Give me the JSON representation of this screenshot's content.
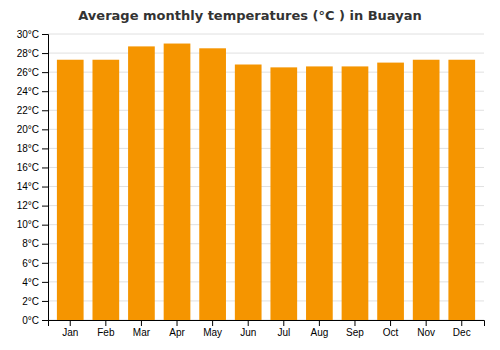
{
  "chart_data": {
    "type": "bar",
    "title": "Average monthly temperatures (°C ) in Buayan",
    "categories": [
      "Jan",
      "Feb",
      "Mar",
      "Apr",
      "May",
      "Jun",
      "Jul",
      "Aug",
      "Sep",
      "Oct",
      "Nov",
      "Dec"
    ],
    "values": [
      27.3,
      27.3,
      28.7,
      29.0,
      28.5,
      26.8,
      26.5,
      26.6,
      26.6,
      27.0,
      27.3,
      27.3
    ],
    "color": "#F59500",
    "ylim": [
      0,
      30
    ],
    "yticks": [
      {
        "value": 0,
        "label": "0°C"
      },
      {
        "value": 2,
        "label": "2°C"
      },
      {
        "value": 4,
        "label": "4°C"
      },
      {
        "value": 6,
        "label": "6°C"
      },
      {
        "value": 8,
        "label": "8°C"
      },
      {
        "value": 10,
        "label": "10°C"
      },
      {
        "value": 12,
        "label": "12°C"
      },
      {
        "value": 14,
        "label": "14°C"
      },
      {
        "value": 16,
        "label": "16°C"
      },
      {
        "value": 18,
        "label": "18°C"
      },
      {
        "value": 20,
        "label": "20°C"
      },
      {
        "value": 22,
        "label": "22°C"
      },
      {
        "value": 24,
        "label": "24°C"
      },
      {
        "value": 26,
        "label": "26°C"
      },
      {
        "value": 28,
        "label": "28°C"
      },
      {
        "value": 30,
        "label": "30°C"
      }
    ],
    "grid": true
  }
}
